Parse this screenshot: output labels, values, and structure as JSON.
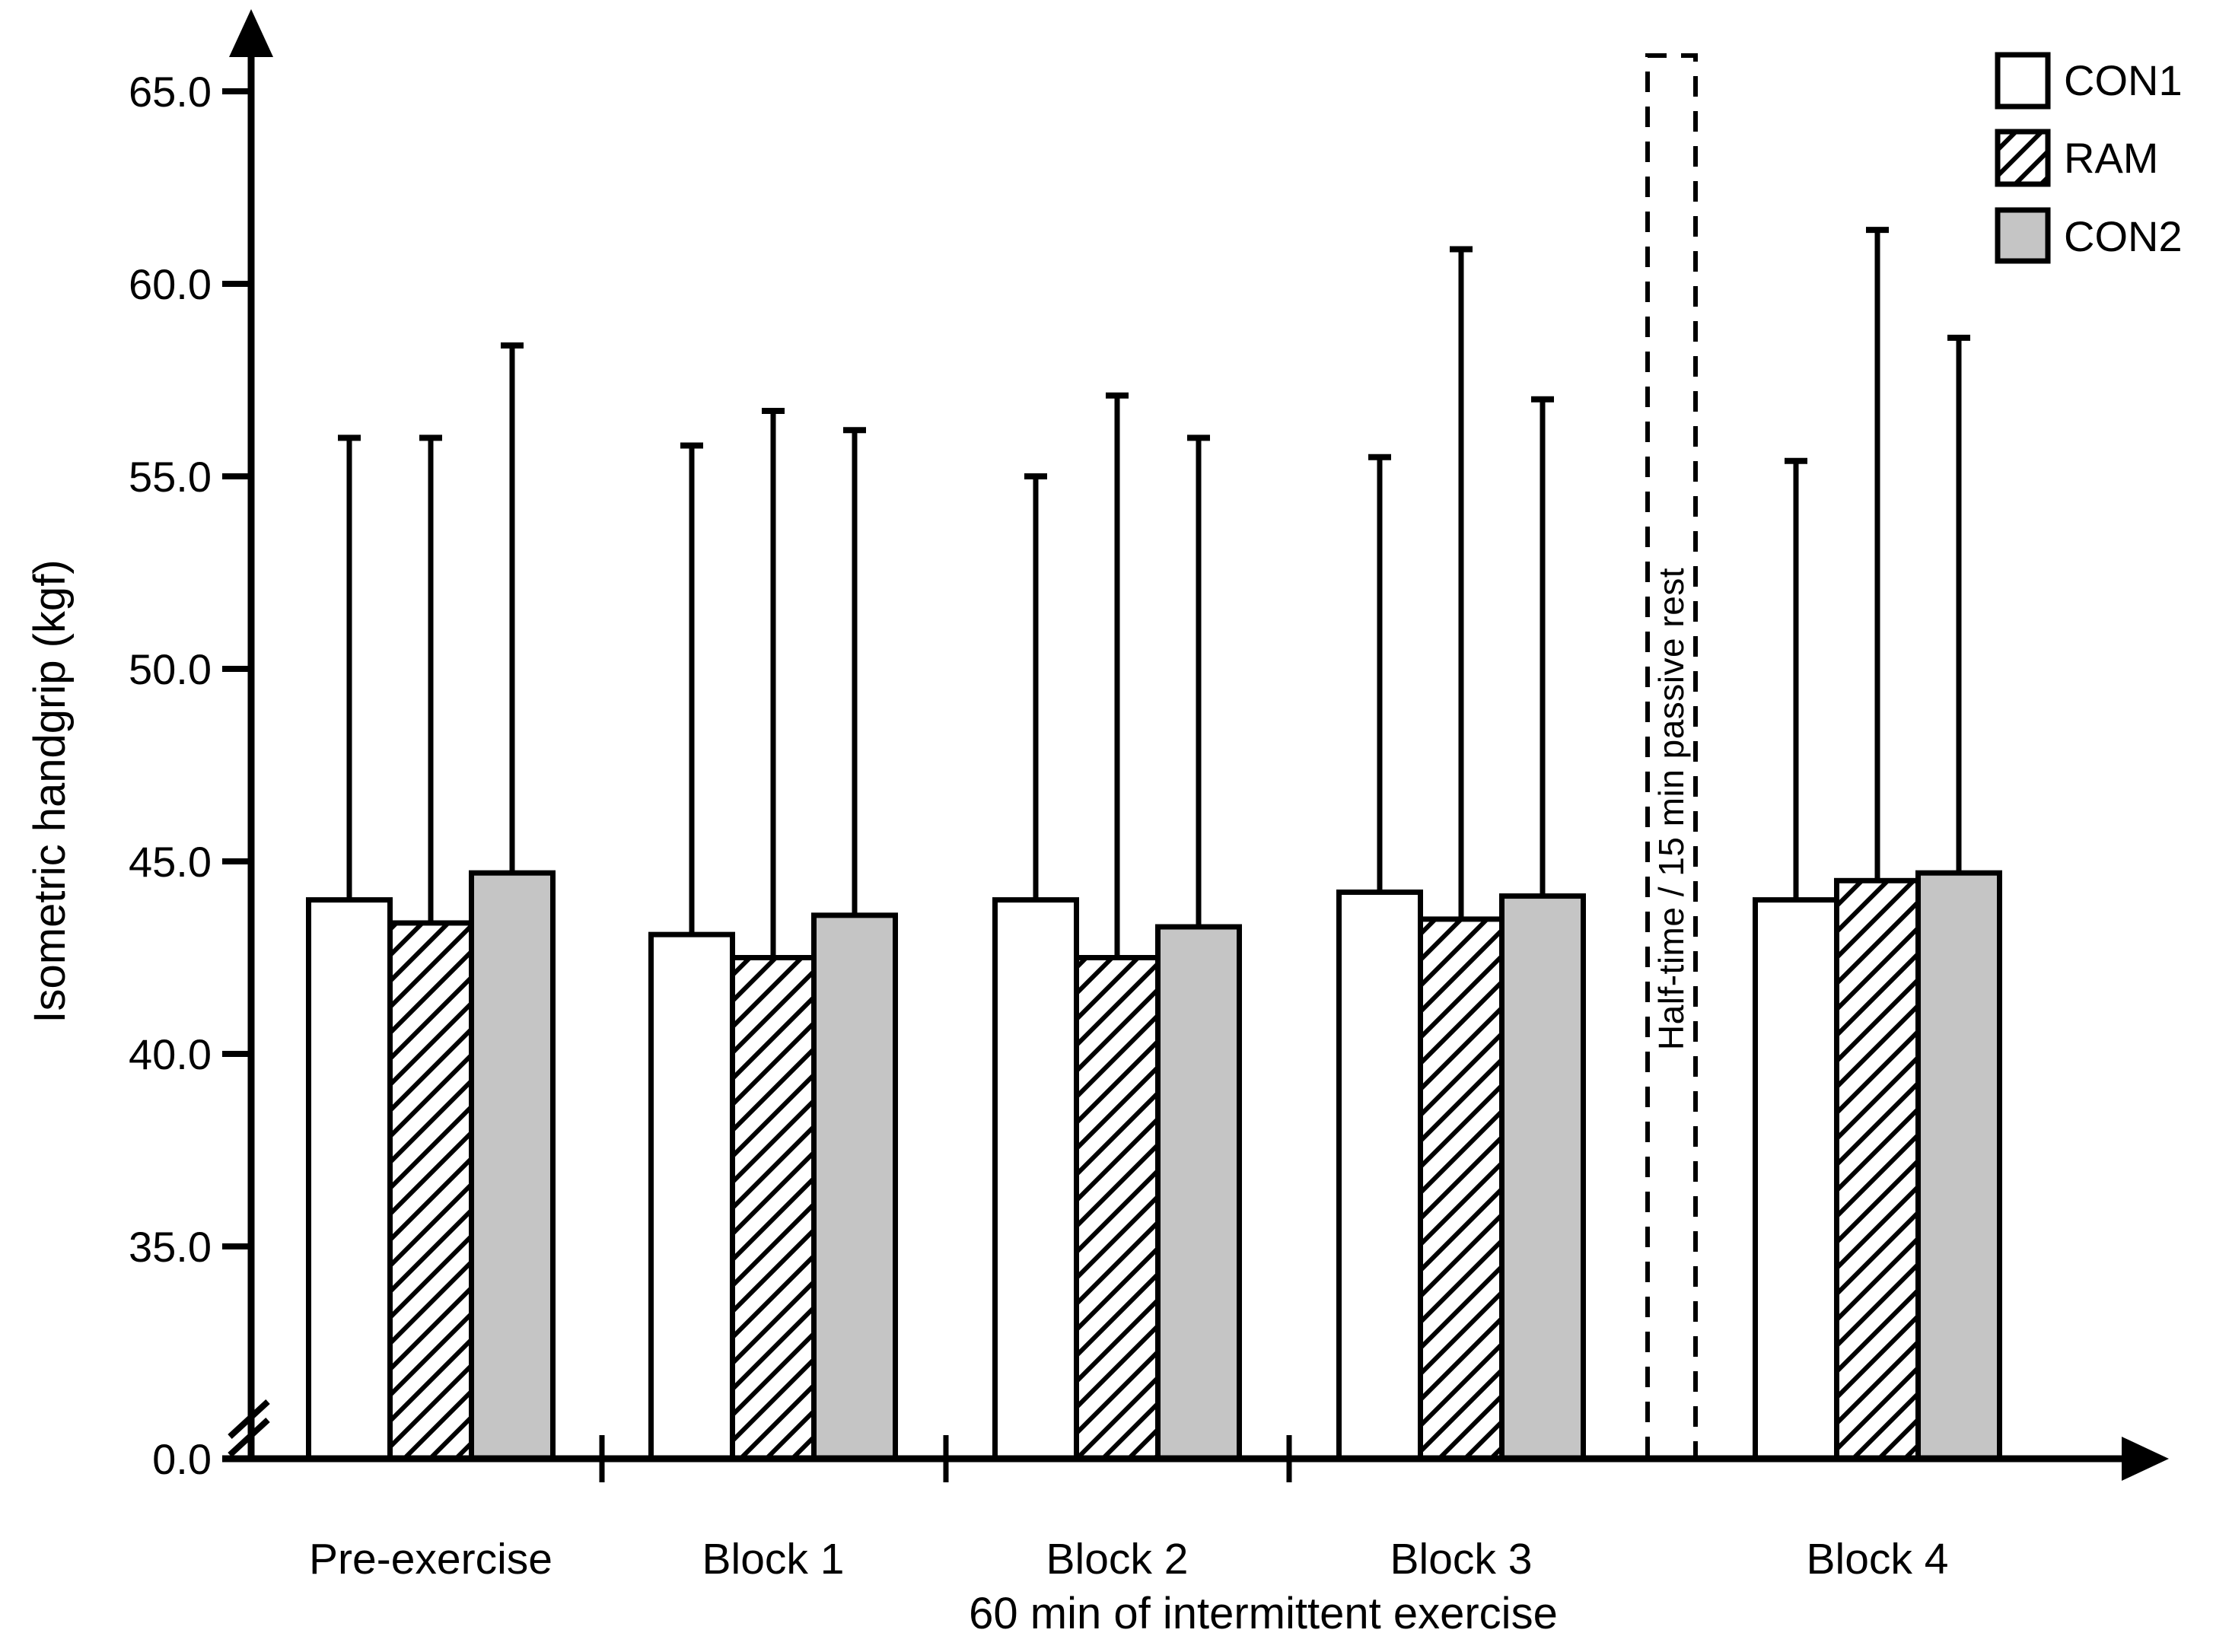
{
  "figure": {
    "background": "#ffffff",
    "ink": "#000000",
    "gray_fill": "#c5c5c5"
  },
  "chart_data": {
    "type": "bar",
    "title": "",
    "xlabel": "60 min of intermittent exercise",
    "ylabel": "Isometric handgrip (kgf)",
    "categories": [
      "Pre-exercise",
      "Block 1",
      "Block 2",
      "Block 3",
      "Block 4"
    ],
    "series": [
      {
        "name": "CON1",
        "fill": "#ffffff",
        "hatch": false,
        "values": [
          44.0,
          43.1,
          44.0,
          44.2,
          44.0
        ],
        "error_top": [
          56.0,
          55.8,
          55.0,
          55.5,
          55.4
        ]
      },
      {
        "name": "RAM",
        "fill": "#ffffff",
        "hatch": true,
        "values": [
          43.4,
          42.5,
          42.5,
          43.5,
          44.5
        ],
        "error_top": [
          56.0,
          56.7,
          57.1,
          60.9,
          61.4
        ]
      },
      {
        "name": "CON2",
        "fill": "#c5c5c5",
        "hatch": false,
        "values": [
          44.7,
          43.6,
          43.3,
          44.1,
          44.7
        ],
        "error_top": [
          58.4,
          56.2,
          56.0,
          57.0,
          58.6
        ]
      }
    ],
    "y_ticks": [
      {
        "value": 65,
        "label": "65.0"
      },
      {
        "value": 60,
        "label": "60.0"
      },
      {
        "value": 55,
        "label": "55.0"
      },
      {
        "value": 50,
        "label": "50.0"
      },
      {
        "value": 45,
        "label": "45.0"
      },
      {
        "value": 40,
        "label": "40.0"
      },
      {
        "value": 35,
        "label": "35.0"
      },
      {
        "value": 0,
        "label": "0.0"
      }
    ],
    "ylim": [
      0,
      66.5
    ],
    "axis_break_between": [
      0,
      35
    ],
    "error_bars": "upper whisker only (bar value to error_top)",
    "grid": "off",
    "legend_position": "top-right",
    "annotation": {
      "text": "Half-time / 15 min passive rest",
      "style": "vertical dashed box",
      "location": "between Block 3 and Block 4"
    }
  }
}
